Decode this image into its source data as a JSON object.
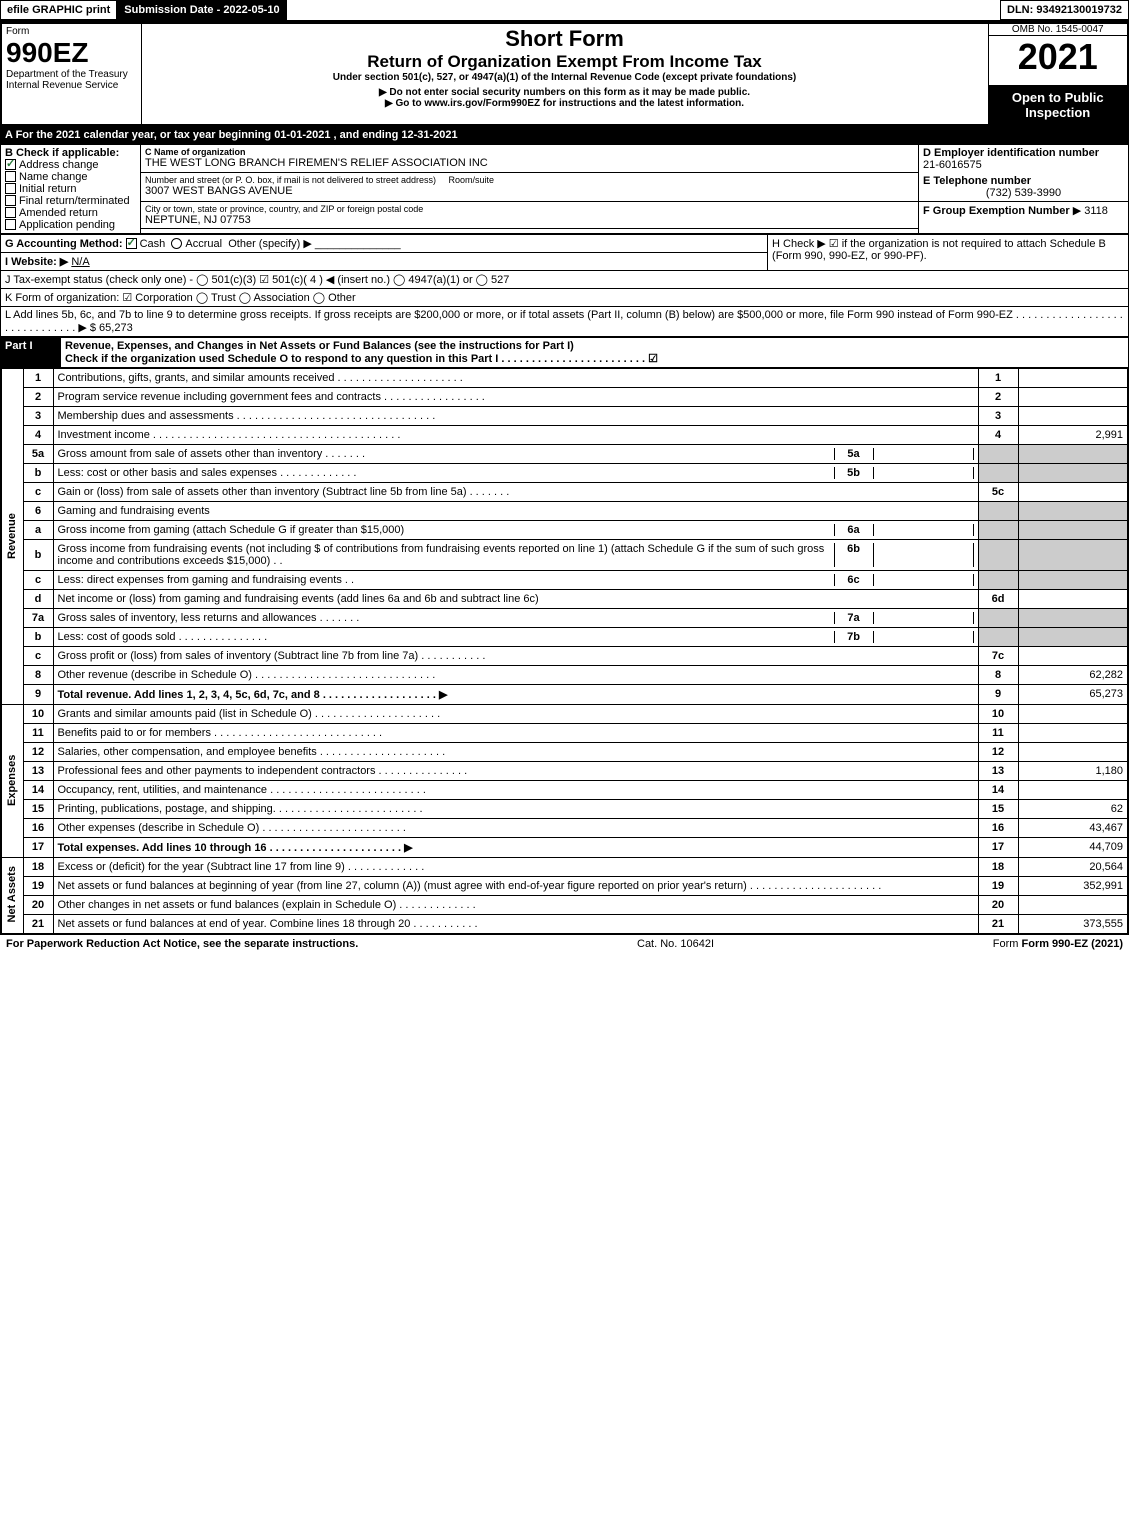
{
  "topbar": {
    "efile": "efile GRAPHIC print",
    "submission": "Submission Date - 2022-05-10",
    "dln": "DLN: 93492130019732"
  },
  "header": {
    "form_label": "Form",
    "form_num": "990EZ",
    "dept": "Department of the Treasury\nInternal Revenue Service",
    "title1": "Short Form",
    "title2": "Return of Organization Exempt From Income Tax",
    "subtitle": "Under section 501(c), 527, or 4947(a)(1) of the Internal Revenue Code (except private foundations)",
    "note1": "▶ Do not enter social security numbers on this form as it may be made public.",
    "note2": "▶ Go to www.irs.gov/Form990EZ for instructions and the latest information.",
    "omb": "OMB No. 1545-0047",
    "year": "2021",
    "open": "Open to Public Inspection"
  },
  "A": {
    "text": "A  For the 2021 calendar year, or tax year beginning 01-01-2021 , and ending 12-31-2021"
  },
  "B": {
    "label": "B  Check if applicable:",
    "items": [
      "Address change",
      "Name change",
      "Initial return",
      "Final return/terminated",
      "Amended return",
      "Application pending"
    ],
    "checked": [
      true,
      false,
      false,
      false,
      false,
      false
    ]
  },
  "C": {
    "name_lbl": "C Name of organization",
    "name": "THE WEST LONG BRANCH FIREMEN'S RELIEF ASSOCIATION INC",
    "addr_lbl": "Number and street (or P. O. box, if mail is not delivered to street address)",
    "addr": "3007 WEST BANGS AVENUE",
    "room_lbl": "Room/suite",
    "city_lbl": "City or town, state or province, country, and ZIP or foreign postal code",
    "city": "NEPTUNE, NJ  07753"
  },
  "D": {
    "lbl": "D Employer identification number",
    "val": "21-6016575"
  },
  "E": {
    "lbl": "E Telephone number",
    "val": "(732) 539-3990"
  },
  "F": {
    "lbl": "F Group Exemption Number",
    "val": "▶ 3118"
  },
  "G": {
    "lbl": "G Accounting Method:",
    "cash": "Cash",
    "accrual": "Accrual",
    "other": "Other (specify) ▶",
    "cash_checked": true
  },
  "H": {
    "text": "H  Check ▶ ☑ if the organization is not required to attach Schedule B (Form 990, 990-EZ, or 990-PF)."
  },
  "I": {
    "lbl": "I Website: ▶",
    "val": "N/A"
  },
  "J": {
    "text": "J Tax-exempt status (check only one) - ◯ 501(c)(3) ☑ 501(c)( 4 ) ◀ (insert no.) ◯ 4947(a)(1) or ◯ 527"
  },
  "K": {
    "text": "K Form of organization: ☑ Corporation  ◯ Trust  ◯ Association  ◯ Other"
  },
  "L": {
    "text": "L Add lines 5b, 6c, and 7b to line 9 to determine gross receipts. If gross receipts are $200,000 or more, or if total assets (Part II, column (B) below) are $500,000 or more, file Form 990 instead of Form 990-EZ . . . . . . . . . . . . . . . . . . . . . . . . . . . . . . ▶ $ 65,273"
  },
  "partI": {
    "hdr": "Part I",
    "title": "Revenue, Expenses, and Changes in Net Assets or Fund Balances (see the instructions for Part I)",
    "check": "Check if the organization used Schedule O to respond to any question in this Part I . . . . . . . . . . . . . . . . . . . . . . . . ☑"
  },
  "sections": {
    "revenue": "Revenue",
    "expenses": "Expenses",
    "netassets": "Net Assets"
  },
  "lines": [
    {
      "n": "1",
      "t": "Contributions, gifts, grants, and similar amounts received . . . . . . . . . . . . . . . . . . . . .",
      "i": "1",
      "a": ""
    },
    {
      "n": "2",
      "t": "Program service revenue including government fees and contracts . . . . . . . . . . . . . . . . .",
      "i": "2",
      "a": ""
    },
    {
      "n": "3",
      "t": "Membership dues and assessments . . . . . . . . . . . . . . . . . . . . . . . . . . . . . . . . .",
      "i": "3",
      "a": ""
    },
    {
      "n": "4",
      "t": "Investment income . . . . . . . . . . . . . . . . . . . . . . . . . . . . . . . . . . . . . . . . .",
      "i": "4",
      "a": "2,991"
    },
    {
      "n": "5a",
      "t": "Gross amount from sale of assets other than inventory . . . . . . .",
      "sub": "5a",
      "shade": true
    },
    {
      "n": "b",
      "t": "Less: cost or other basis and sales expenses . . . . . . . . . . . . .",
      "sub": "5b",
      "shade": true
    },
    {
      "n": "c",
      "t": "Gain or (loss) from sale of assets other than inventory (Subtract line 5b from line 5a) . . . . . . .",
      "i": "5c",
      "a": ""
    },
    {
      "n": "6",
      "t": "Gaming and fundraising events",
      "shade": true,
      "nosub": true
    },
    {
      "n": "a",
      "t": "Gross income from gaming (attach Schedule G if greater than $15,000)",
      "sub": "6a",
      "shade": true
    },
    {
      "n": "b",
      "t": "Gross income from fundraising events (not including $                      of contributions from fundraising events reported on line 1) (attach Schedule G if the sum of such gross income and contributions exceeds $15,000)   . .",
      "sub": "6b",
      "shade": true
    },
    {
      "n": "c",
      "t": "Less: direct expenses from gaming and fundraising events       . .",
      "sub": "6c",
      "shade": true
    },
    {
      "n": "d",
      "t": "Net income or (loss) from gaming and fundraising events (add lines 6a and 6b and subtract line 6c)",
      "i": "6d",
      "a": ""
    },
    {
      "n": "7a",
      "t": "Gross sales of inventory, less returns and allowances . . . . . . .",
      "sub": "7a",
      "shade": true
    },
    {
      "n": "b",
      "t": "Less: cost of goods sold        . . . . . . . . . . . . . . .",
      "sub": "7b",
      "shade": true
    },
    {
      "n": "c",
      "t": "Gross profit or (loss) from sales of inventory (Subtract line 7b from line 7a) . . . . . . . . . . .",
      "i": "7c",
      "a": ""
    },
    {
      "n": "8",
      "t": "Other revenue (describe in Schedule O) . . . . . . . . . . . . . . . . . . . . . . . . . . . . . .",
      "i": "8",
      "a": "62,282"
    },
    {
      "n": "9",
      "t": "Total revenue. Add lines 1, 2, 3, 4, 5c, 6d, 7c, and 8  . . . . . . . . . . . . . . . . . . .  ▶",
      "i": "9",
      "a": "65,273",
      "bold": true
    }
  ],
  "exp_lines": [
    {
      "n": "10",
      "t": "Grants and similar amounts paid (list in Schedule O) . . . . . . . . . . . . . . . . . . . . .",
      "i": "10",
      "a": ""
    },
    {
      "n": "11",
      "t": "Benefits paid to or for members     . . . . . . . . . . . . . . . . . . . . . . . . . . . .",
      "i": "11",
      "a": ""
    },
    {
      "n": "12",
      "t": "Salaries, other compensation, and employee benefits . . . . . . . . . . . . . . . . . . . . .",
      "i": "12",
      "a": ""
    },
    {
      "n": "13",
      "t": "Professional fees and other payments to independent contractors . . . . . . . . . . . . . . .",
      "i": "13",
      "a": "1,180"
    },
    {
      "n": "14",
      "t": "Occupancy, rent, utilities, and maintenance . . . . . . . . . . . . . . . . . . . . . . . . . .",
      "i": "14",
      "a": ""
    },
    {
      "n": "15",
      "t": "Printing, publications, postage, and shipping. . . . . . . . . . . . . . . . . . . . . . . . .",
      "i": "15",
      "a": "62"
    },
    {
      "n": "16",
      "t": "Other expenses (describe in Schedule O)     . . . . . . . . . . . . . . . . . . . . . . . .",
      "i": "16",
      "a": "43,467"
    },
    {
      "n": "17",
      "t": "Total expenses. Add lines 10 through 16     . . . . . . . . . . . . . . . . . . . . . .   ▶",
      "i": "17",
      "a": "44,709",
      "bold": true
    }
  ],
  "na_lines": [
    {
      "n": "18",
      "t": "Excess or (deficit) for the year (Subtract line 17 from line 9)       . . . . . . . . . . . . .",
      "i": "18",
      "a": "20,564"
    },
    {
      "n": "19",
      "t": "Net assets or fund balances at beginning of year (from line 27, column (A)) (must agree with end-of-year figure reported on prior year's return) . . . . . . . . . . . . . . . . . . . . . .",
      "i": "19",
      "a": "352,991"
    },
    {
      "n": "20",
      "t": "Other changes in net assets or fund balances (explain in Schedule O) . . . . . . . . . . . . .",
      "i": "20",
      "a": ""
    },
    {
      "n": "21",
      "t": "Net assets or fund balances at end of year. Combine lines 18 through 20 . . . . . . . . . . .",
      "i": "21",
      "a": "373,555"
    }
  ],
  "footer": {
    "left": "For Paperwork Reduction Act Notice, see the separate instructions.",
    "mid": "Cat. No. 10642I",
    "right": "Form 990-EZ (2021)"
  }
}
